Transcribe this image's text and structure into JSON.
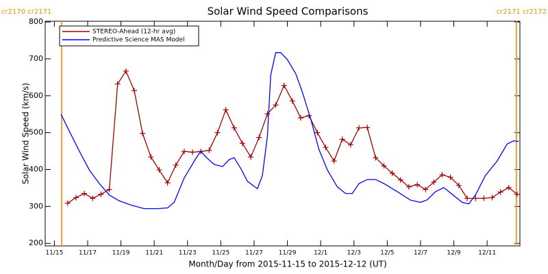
{
  "chart_data": {
    "type": "line",
    "title": "Solar Wind Speed Comparisons",
    "xlabel": "Month/Day from 2015-11-15 to 2015-12-12 (UT)",
    "ylabel": "Solar Wind Speed (km/s)",
    "annotations": [
      "cr2170 cr2171",
      "cr2171 cr2172"
    ],
    "vlines": [
      0.44,
      27.76
    ],
    "vline_color": "#f0a030",
    "xlim": [
      -0.55,
      27.97
    ],
    "xticks": [
      {
        "value": 0,
        "label": "11/15"
      },
      {
        "value": 2,
        "label": "11/17"
      },
      {
        "value": 4,
        "label": "11/19"
      },
      {
        "value": 6,
        "label": "11/21"
      },
      {
        "value": 8,
        "label": "11/23"
      },
      {
        "value": 10,
        "label": "11/25"
      },
      {
        "value": 12,
        "label": "11/27"
      },
      {
        "value": 14,
        "label": "11/29"
      },
      {
        "value": 16,
        "label": "12/1"
      },
      {
        "value": 18,
        "label": "12/3"
      },
      {
        "value": 20,
        "label": "12/5"
      },
      {
        "value": 22,
        "label": "12/7"
      },
      {
        "value": 24,
        "label": "12/9"
      },
      {
        "value": 26,
        "label": "12/11"
      }
    ],
    "ylim": [
      193,
      802
    ],
    "yticks": [
      200,
      300,
      400,
      500,
      600,
      700,
      800
    ],
    "series": [
      {
        "name": "STEREO-Ahead (12-hr avg)",
        "color": "#a00000",
        "markers": true,
        "x": [
          0.8,
          1.3,
          1.8,
          2.3,
          2.8,
          3.3,
          3.8,
          4.3,
          4.8,
          5.3,
          5.8,
          6.3,
          6.8,
          7.3,
          7.8,
          8.3,
          8.8,
          9.3,
          9.8,
          10.3,
          10.8,
          11.3,
          11.8,
          12.3,
          12.8,
          13.3,
          13.8,
          14.3,
          14.8,
          15.3,
          15.8,
          16.3,
          16.8,
          17.3,
          17.8,
          18.3,
          18.8,
          19.3,
          19.8,
          20.3,
          20.8,
          21.3,
          21.8,
          22.3,
          22.8,
          23.3,
          23.8,
          24.3,
          24.8,
          25.3,
          25.8,
          26.3,
          26.8,
          27.3,
          27.8
        ],
        "values": [
          309,
          324,
          335,
          322,
          333,
          346,
          632,
          667,
          614,
          498,
          434,
          399,
          364,
          412,
          449,
          447,
          449,
          452,
          500,
          562,
          513,
          471,
          434,
          487,
          551,
          575,
          628,
          586,
          540,
          546,
          500,
          460,
          423,
          482,
          467,
          513,
          514,
          432,
          410,
          390,
          372,
          353,
          359,
          346,
          366,
          386,
          379,
          357,
          322,
          322,
          322,
          324,
          339,
          351,
          333
        ]
      },
      {
        "name": "Predictive Science MAS Model",
        "color": "#0000ff",
        "markers": false,
        "x": [
          0.4,
          0.8,
          1.5,
          2.1,
          2.7,
          3.3,
          3.9,
          4.6,
          5.4,
          6.2,
          6.8,
          7.2,
          7.8,
          8.5,
          8.8,
          9.1,
          9.6,
          10.1,
          10.5,
          10.8,
          11.2,
          11.6,
          12.2,
          12.5,
          12.8,
          13.0,
          13.3,
          13.6,
          14.0,
          14.5,
          14.9,
          15.4,
          15.9,
          16.4,
          17.0,
          17.5,
          17.9,
          18.3,
          18.8,
          19.3,
          19.8,
          20.6,
          21.4,
          22.0,
          22.4,
          22.9,
          23.4,
          23.9,
          24.5,
          24.9,
          25.3,
          25.9,
          26.6,
          27.2,
          27.6,
          27.9
        ],
        "values": [
          550,
          513,
          450,
          399,
          362,
          331,
          315,
          304,
          294,
          294,
          296,
          311,
          377,
          430,
          450,
          434,
          414,
          408,
          427,
          432,
          403,
          368,
          348,
          384,
          491,
          656,
          717,
          717,
          698,
          660,
          610,
          537,
          454,
          399,
          353,
          335,
          335,
          362,
          373,
          373,
          362,
          340,
          317,
          311,
          318,
          340,
          351,
          333,
          311,
          307,
          331,
          384,
          423,
          469,
          478,
          476
        ]
      }
    ]
  }
}
